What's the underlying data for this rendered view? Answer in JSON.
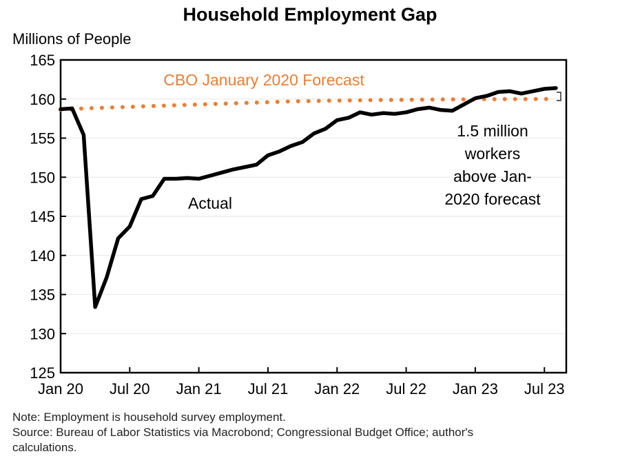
{
  "chart_data": {
    "type": "line",
    "title": "Household Employment Gap",
    "ylabel": "Millions of People",
    "xlabel": "",
    "ylim": [
      125,
      165
    ],
    "yticks": [
      125,
      130,
      135,
      140,
      145,
      150,
      155,
      160,
      165
    ],
    "xtick_labels": [
      "Jan 20",
      "Jul 20",
      "Jan 21",
      "Jul 21",
      "Jan 22",
      "Jul 22",
      "Jan 23",
      "Jul 23"
    ],
    "x_start": "Jan 2020",
    "x_frequency": "monthly",
    "series": [
      {
        "name": "Actual",
        "color": "#000000",
        "style": "solid",
        "values": [
          158.7,
          158.8,
          155.4,
          133.4,
          137.2,
          142.2,
          143.7,
          147.2,
          147.6,
          149.8,
          149.8,
          149.9,
          149.8,
          150.2,
          150.6,
          151.0,
          151.3,
          151.6,
          152.8,
          153.3,
          154.0,
          154.5,
          155.6,
          156.2,
          157.3,
          157.6,
          158.3,
          158.0,
          158.2,
          158.1,
          158.3,
          158.7,
          158.9,
          158.6,
          158.5,
          159.3,
          160.1,
          160.4,
          160.9,
          161.0,
          160.7,
          161.0,
          161.3,
          161.4
        ]
      },
      {
        "name": "CBO January 2020 Forecast",
        "color": "#ED7D31",
        "style": "dotted",
        "values": [
          158.6,
          158.7,
          158.8,
          158.85,
          158.9,
          158.95,
          159.0,
          159.05,
          159.1,
          159.15,
          159.2,
          159.25,
          159.3,
          159.35,
          159.4,
          159.45,
          159.5,
          159.55,
          159.6,
          159.65,
          159.7,
          159.72,
          159.75,
          159.78,
          159.8,
          159.82,
          159.84,
          159.86,
          159.88,
          159.9,
          159.9,
          159.92,
          159.93,
          159.94,
          159.95,
          159.96,
          159.97,
          159.98,
          159.98,
          159.99,
          159.99,
          160.0,
          160.0,
          160.0
        ]
      }
    ],
    "annotations": {
      "actual_label": "Actual",
      "forecast_label": "CBO January 2020 Forecast",
      "gap_label": [
        "1.5 million",
        "workers",
        "above Jan-",
        "2020 forecast"
      ]
    },
    "grid": true,
    "legend": "none"
  },
  "notes": {
    "note": "Note: Employment is household survey employment.",
    "source_line1": "Source: Bureau of Labor Statistics via Macrobond; Congressional Budget Office; author's",
    "source_line2": "calculations."
  }
}
